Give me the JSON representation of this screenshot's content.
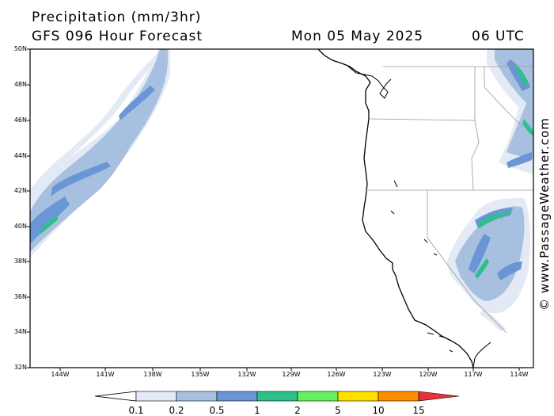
{
  "header": {
    "title": "Precipitation (mm/3hr)",
    "subtitle": "GFS 096 Hour Forecast",
    "date": "Mon 05 May 2025",
    "time": "06 UTC"
  },
  "map": {
    "lat_labels": [
      "50N",
      "48N",
      "46N",
      "44N",
      "42N",
      "40N",
      "38N",
      "36N",
      "34N",
      "32N"
    ],
    "lon_labels": [
      "144W",
      "141W",
      "138W",
      "135W",
      "132W",
      "129W",
      "126W",
      "123W",
      "120W",
      "117W",
      "114W"
    ],
    "lat_range": [
      32,
      50
    ],
    "lon_range": [
      -146,
      -113
    ]
  },
  "legend": {
    "ticks": [
      "0.1",
      "0.2",
      "0.5",
      "1",
      "2",
      "5",
      "10",
      "15"
    ],
    "colors": [
      "#e3eaf5",
      "#a8c0e0",
      "#6b96d6",
      "#2ec08a",
      "#66f060",
      "#ffe000",
      "#ff8c00",
      "#e8303c"
    ]
  },
  "credit": "© www.PassageWeather.com"
}
